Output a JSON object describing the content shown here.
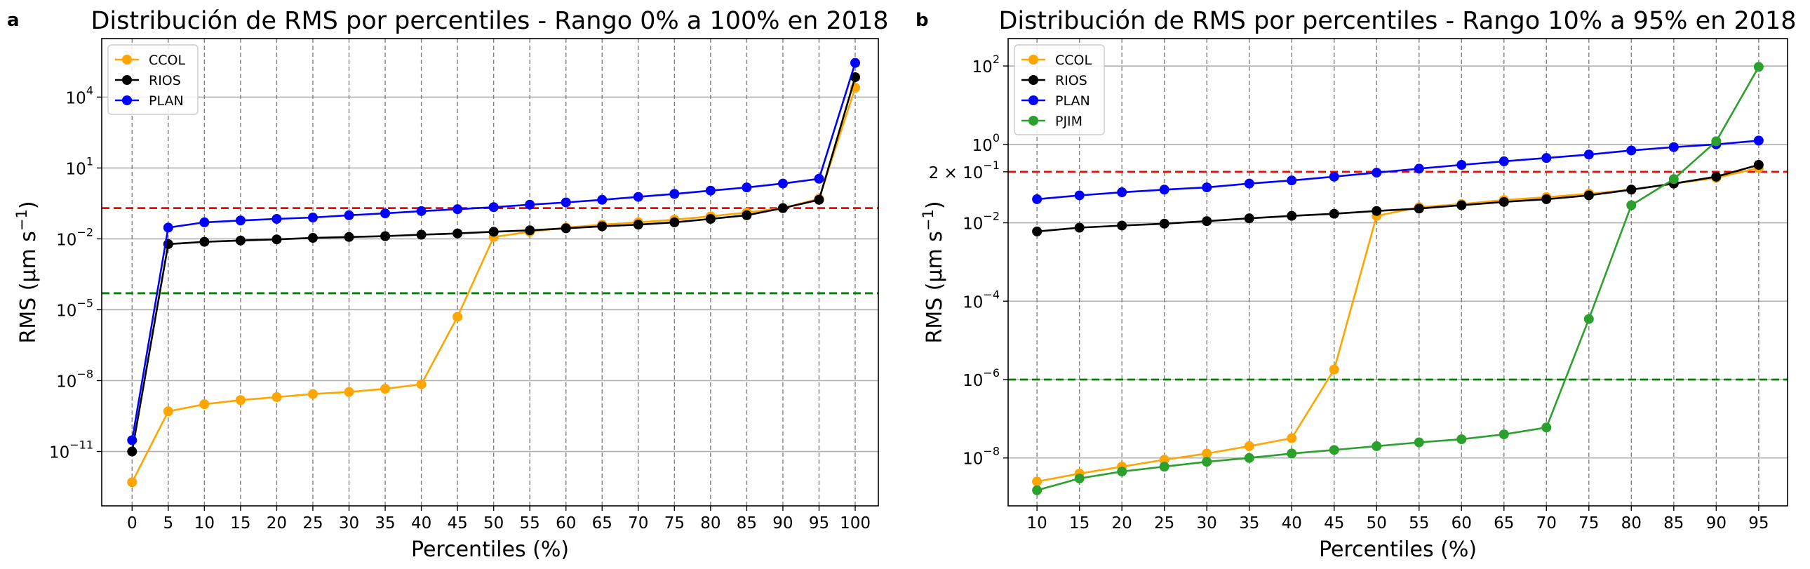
{
  "chart_data": [
    {
      "panel_label": "a",
      "type": "line",
      "title": "Distribución de RMS por percentiles - Rango 0% a 100% en 2018",
      "xlabel": "Percentiles (%)",
      "ylabel": "RMS (µm s",
      "ylabel_sup": "−1",
      "yscale": "log",
      "ylim": [
        5e-14,
        3000000.0
      ],
      "y_ticks": [
        {
          "value": 1e-11,
          "base": "10",
          "exp": "−11"
        },
        {
          "value": 1e-08,
          "base": "10",
          "exp": "−8"
        },
        {
          "value": 1e-05,
          "base": "10",
          "exp": "−5"
        },
        {
          "value": 0.01,
          "base": "10",
          "exp": "−2"
        },
        {
          "value": 10,
          "base": "10",
          "exp": "1"
        },
        {
          "value": 10000,
          "base": "10",
          "exp": "4"
        }
      ],
      "x": [
        0,
        5,
        10,
        15,
        20,
        25,
        30,
        35,
        40,
        45,
        50,
        55,
        60,
        65,
        70,
        75,
        80,
        85,
        90,
        95,
        100
      ],
      "x_ticks": [
        "0",
        "5",
        "10",
        "15",
        "20",
        "25",
        "30",
        "35",
        "40",
        "45",
        "50",
        "55",
        "60",
        "65",
        "70",
        "75",
        "80",
        "85",
        "90",
        "95",
        "100"
      ],
      "xlim": [
        -4.2,
        103.2
      ],
      "grid": {
        "x": "dashed",
        "y": "solid"
      },
      "legend_position": "upper-left",
      "series": [
        {
          "name": "CCOL",
          "color": "#FFA500",
          "values": [
            5e-13,
            5e-10,
            1e-09,
            1.5e-09,
            2e-09,
            2.7e-09,
            3.3e-09,
            4.5e-09,
            7e-09,
            5e-06,
            0.012,
            0.02,
            0.03,
            0.04,
            0.05,
            0.065,
            0.09,
            0.13,
            0.2,
            0.5,
            25000
          ]
        },
        {
          "name": "RIOS",
          "color": "#000000",
          "values": [
            1e-11,
            0.006,
            0.0075,
            0.0085,
            0.0095,
            0.011,
            0.012,
            0.013,
            0.015,
            0.017,
            0.02,
            0.023,
            0.028,
            0.034,
            0.04,
            0.05,
            0.07,
            0.1,
            0.2,
            0.45,
            70000
          ]
        },
        {
          "name": "PLAN",
          "color": "#0000FF",
          "values": [
            3e-11,
            0.03,
            0.05,
            0.06,
            0.07,
            0.08,
            0.1,
            0.12,
            0.15,
            0.18,
            0.22,
            0.28,
            0.35,
            0.45,
            0.6,
            0.8,
            1.1,
            1.5,
            2.2,
            3.5,
            280000
          ]
        }
      ],
      "reference_lines": [
        {
          "y": 0.2,
          "color": "#FF0000",
          "style": "dashed"
        },
        {
          "y": 5e-05,
          "color": "#008000",
          "style": "dashed"
        }
      ]
    },
    {
      "panel_label": "b",
      "type": "line",
      "title": "Distribución de RMS por percentiles - Rango 10% a 95% en 2018",
      "xlabel": "Percentiles (%)",
      "ylabel": "RMS (µm s",
      "ylabel_sup": "−1",
      "yscale": "log",
      "ylim": [
        6e-10,
        500
      ],
      "y_ticks": [
        {
          "value": 1e-08,
          "base": "10",
          "exp": "−8"
        },
        {
          "value": 1e-06,
          "base": "10",
          "exp": "−6"
        },
        {
          "value": 0.0001,
          "base": "10",
          "exp": "−4"
        },
        {
          "value": 0.01,
          "base": "10",
          "exp": "−2"
        },
        {
          "value": 1,
          "base": "10",
          "exp": "0"
        },
        {
          "value": 100,
          "base": "10",
          "exp": "2"
        }
      ],
      "y_extra_tick": {
        "value": 0.2,
        "text": "2 × 10",
        "exp": "−1",
        "color": "#FF0000"
      },
      "x": [
        10,
        15,
        20,
        25,
        30,
        35,
        40,
        45,
        50,
        55,
        60,
        65,
        70,
        75,
        80,
        85,
        90,
        95
      ],
      "x_ticks": [
        "10",
        "15",
        "20",
        "25",
        "30",
        "35",
        "40",
        "45",
        "50",
        "55",
        "60",
        "65",
        "70",
        "75",
        "80",
        "85",
        "90",
        "95"
      ],
      "xlim": [
        6.6,
        98.4
      ],
      "grid": {
        "x": "dashed",
        "y": "solid"
      },
      "legend_position": "upper-left",
      "series": [
        {
          "name": "CCOL",
          "color": "#FFA500",
          "values": [
            2.5e-09,
            4e-09,
            6e-09,
            9e-09,
            1.3e-08,
            2e-08,
            3.2e-08,
            1.8e-06,
            0.015,
            0.025,
            0.03,
            0.038,
            0.045,
            0.055,
            0.07,
            0.1,
            0.14,
            0.25
          ]
        },
        {
          "name": "RIOS",
          "color": "#000000",
          "values": [
            0.006,
            0.0075,
            0.0085,
            0.0095,
            0.011,
            0.013,
            0.015,
            0.017,
            0.02,
            0.023,
            0.028,
            0.034,
            0.04,
            0.05,
            0.07,
            0.1,
            0.15,
            0.3
          ]
        },
        {
          "name": "PLAN",
          "color": "#0000FF",
          "values": [
            0.04,
            0.05,
            0.06,
            0.07,
            0.08,
            0.1,
            0.12,
            0.15,
            0.19,
            0.24,
            0.3,
            0.37,
            0.45,
            0.55,
            0.7,
            0.85,
            1.0,
            1.25
          ]
        },
        {
          "name": "PJIM",
          "color": "#2CA02C",
          "values": [
            1.5e-09,
            3e-09,
            4.5e-09,
            6e-09,
            8e-09,
            1e-08,
            1.3e-08,
            1.6e-08,
            2e-08,
            2.5e-08,
            3e-08,
            4e-08,
            6e-08,
            3.5e-05,
            0.028,
            0.13,
            1.2,
            95
          ]
        }
      ],
      "reference_lines": [
        {
          "y": 0.2,
          "color": "#FF0000",
          "style": "dashed"
        },
        {
          "y": 1e-06,
          "color": "#008000",
          "style": "dashed"
        }
      ]
    }
  ]
}
